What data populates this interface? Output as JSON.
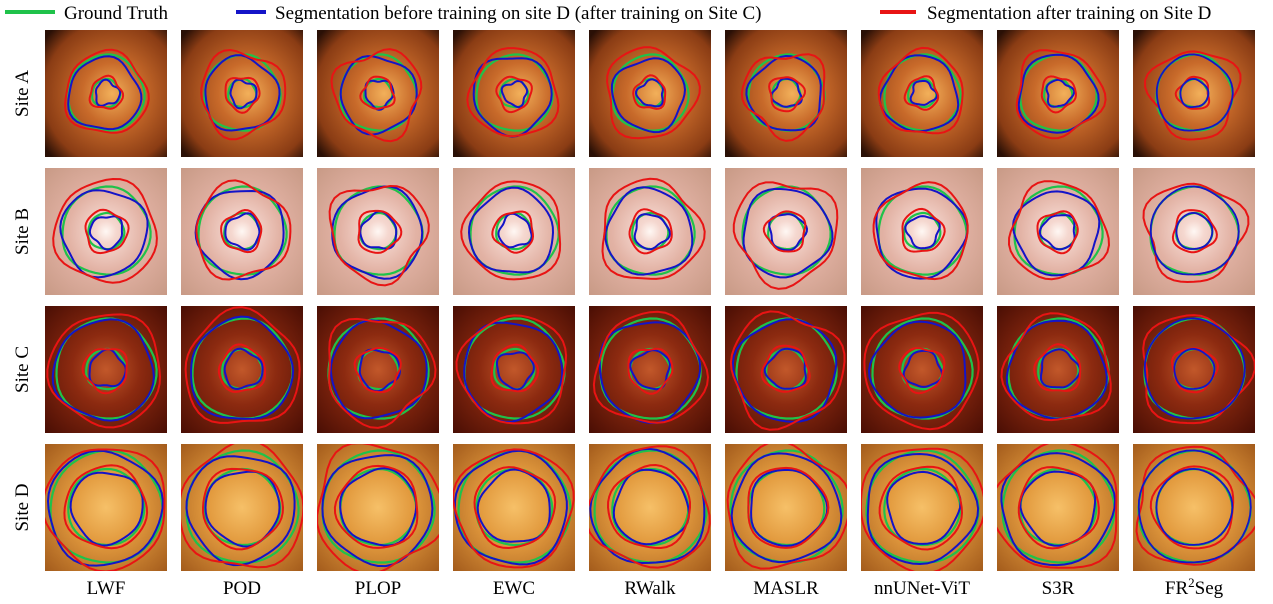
{
  "legend": [
    "Ground Truth",
    "Segmentation before training on site D (after training on Site C)",
    "Segmentation after training on Site D"
  ],
  "rows": [
    "Site A",
    "Site B",
    "Site C",
    "Site D"
  ],
  "columns": [
    "LWF",
    "POD",
    "PLOP",
    "EWC",
    "RWalk",
    "MASLR",
    "nnUNet-ViT",
    "S3R",
    {
      "base": "FR",
      "sup": "2",
      "rest": "Seg"
    }
  ]
}
